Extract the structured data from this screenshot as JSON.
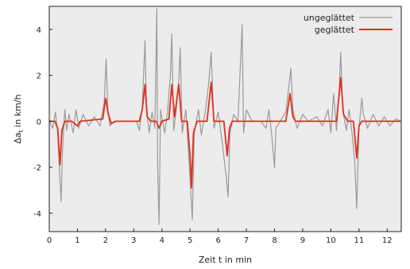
{
  "chart_data": {
    "type": "line",
    "xlabel": "Zeit t in min",
    "ylabel": "Δa",
    "ylabel_subscript": "t",
    "ylabel_unit": " in km/h",
    "xlim": [
      0,
      12.5
    ],
    "ylim": [
      -4.8,
      5
    ],
    "xticks": [
      "0",
      "1",
      "2",
      "3",
      "4",
      "5",
      "6",
      "7",
      "8",
      "9",
      "10",
      "11",
      "12"
    ],
    "yticks": [
      "-4",
      "-2",
      "0",
      "2",
      "4"
    ],
    "grid": false,
    "legend_position": "top-right",
    "series": [
      {
        "name": "ungeglättet",
        "color": "#9a9a9a",
        "points": [
          [
            0.0,
            0.0
          ],
          [
            0.12,
            -0.3
          ],
          [
            0.22,
            0.4
          ],
          [
            0.3,
            -0.5
          ],
          [
            0.38,
            -2.6
          ],
          [
            0.42,
            -3.5
          ],
          [
            0.47,
            -1.2
          ],
          [
            0.55,
            0.5
          ],
          [
            0.62,
            -0.4
          ],
          [
            0.7,
            0.3
          ],
          [
            0.85,
            -0.5
          ],
          [
            0.95,
            0.5
          ],
          [
            1.05,
            -0.3
          ],
          [
            1.2,
            0.3
          ],
          [
            1.4,
            -0.2
          ],
          [
            1.6,
            0.2
          ],
          [
            1.8,
            -0.2
          ],
          [
            1.95,
            0.8
          ],
          [
            2.02,
            2.7
          ],
          [
            2.08,
            0.5
          ],
          [
            2.15,
            -0.2
          ],
          [
            2.3,
            0.0
          ],
          [
            2.8,
            0.0
          ],
          [
            3.1,
            0.0
          ],
          [
            3.2,
            -0.4
          ],
          [
            3.3,
            0.6
          ],
          [
            3.35,
            2.0
          ],
          [
            3.4,
            3.5
          ],
          [
            3.45,
            0.5
          ],
          [
            3.55,
            -0.5
          ],
          [
            3.65,
            0.4
          ],
          [
            3.75,
            -0.3
          ],
          [
            3.82,
            4.9
          ],
          [
            3.85,
            -2.0
          ],
          [
            3.9,
            -4.5
          ],
          [
            3.95,
            0.5
          ],
          [
            4.1,
            -0.5
          ],
          [
            4.2,
            0.4
          ],
          [
            4.3,
            2.0
          ],
          [
            4.35,
            3.8
          ],
          [
            4.42,
            -0.4
          ],
          [
            4.5,
            0.4
          ],
          [
            4.6,
            1.8
          ],
          [
            4.65,
            3.2
          ],
          [
            4.72,
            -0.5
          ],
          [
            4.85,
            0.5
          ],
          [
            5.0,
            -2.5
          ],
          [
            5.08,
            -4.3
          ],
          [
            5.15,
            -0.5
          ],
          [
            5.3,
            0.5
          ],
          [
            5.4,
            -0.6
          ],
          [
            5.55,
            0.5
          ],
          [
            5.65,
            1.5
          ],
          [
            5.75,
            3.0
          ],
          [
            5.85,
            -0.3
          ],
          [
            6.0,
            0.4
          ],
          [
            6.15,
            -1.0
          ],
          [
            6.3,
            -2.6
          ],
          [
            6.35,
            -3.3
          ],
          [
            6.42,
            -0.5
          ],
          [
            6.55,
            0.3
          ],
          [
            6.7,
            0.0
          ],
          [
            6.85,
            4.2
          ],
          [
            6.9,
            -0.5
          ],
          [
            7.0,
            0.5
          ],
          [
            7.2,
            0.0
          ],
          [
            7.5,
            0.0
          ],
          [
            7.7,
            -0.3
          ],
          [
            7.8,
            0.5
          ],
          [
            7.9,
            -0.6
          ],
          [
            8.0,
            -2.0
          ],
          [
            8.05,
            -0.3
          ],
          [
            8.2,
            0.0
          ],
          [
            8.4,
            0.4
          ],
          [
            8.5,
            1.4
          ],
          [
            8.58,
            2.3
          ],
          [
            8.65,
            0.5
          ],
          [
            8.8,
            -0.3
          ],
          [
            9.0,
            0.3
          ],
          [
            9.2,
            0.0
          ],
          [
            9.5,
            0.2
          ],
          [
            9.7,
            -0.2
          ],
          [
            9.9,
            0.5
          ],
          [
            10.0,
            -0.5
          ],
          [
            10.1,
            1.2
          ],
          [
            10.2,
            -0.4
          ],
          [
            10.3,
            1.5
          ],
          [
            10.35,
            3.0
          ],
          [
            10.42,
            0.5
          ],
          [
            10.55,
            -0.4
          ],
          [
            10.65,
            0.5
          ],
          [
            10.75,
            -0.5
          ],
          [
            10.85,
            -1.8
          ],
          [
            10.92,
            -3.8
          ],
          [
            11.0,
            -0.3
          ],
          [
            11.1,
            1.0
          ],
          [
            11.15,
            0.3
          ],
          [
            11.3,
            -0.3
          ],
          [
            11.5,
            0.3
          ],
          [
            11.7,
            -0.2
          ],
          [
            11.9,
            0.2
          ],
          [
            12.1,
            -0.2
          ],
          [
            12.3,
            0.1
          ],
          [
            12.5,
            0.0
          ]
        ]
      },
      {
        "name": "geglättet",
        "color": "#e0301e",
        "points": [
          [
            0.0,
            0.0
          ],
          [
            0.2,
            0.0
          ],
          [
            0.3,
            -0.3
          ],
          [
            0.38,
            -1.9
          ],
          [
            0.45,
            -0.4
          ],
          [
            0.55,
            0.0
          ],
          [
            0.8,
            0.0
          ],
          [
            1.0,
            -0.2
          ],
          [
            1.1,
            0.0
          ],
          [
            1.9,
            0.1
          ],
          [
            2.0,
            1.0
          ],
          [
            2.1,
            0.3
          ],
          [
            2.2,
            -0.1
          ],
          [
            2.35,
            0.0
          ],
          [
            3.2,
            0.0
          ],
          [
            3.3,
            0.5
          ],
          [
            3.4,
            1.6
          ],
          [
            3.48,
            0.2
          ],
          [
            3.6,
            0.0
          ],
          [
            3.8,
            0.0
          ],
          [
            3.9,
            -0.3
          ],
          [
            4.0,
            0.0
          ],
          [
            4.25,
            0.1
          ],
          [
            4.35,
            1.6
          ],
          [
            4.45,
            0.2
          ],
          [
            4.6,
            1.6
          ],
          [
            4.7,
            0.0
          ],
          [
            4.9,
            0.0
          ],
          [
            5.0,
            -1.5
          ],
          [
            5.05,
            -2.9
          ],
          [
            5.12,
            -0.5
          ],
          [
            5.25,
            0.0
          ],
          [
            5.6,
            0.0
          ],
          [
            5.75,
            1.7
          ],
          [
            5.85,
            0.0
          ],
          [
            6.2,
            0.0
          ],
          [
            6.32,
            -1.5
          ],
          [
            6.4,
            -0.3
          ],
          [
            6.5,
            0.0
          ],
          [
            8.4,
            0.0
          ],
          [
            8.55,
            1.2
          ],
          [
            8.65,
            0.2
          ],
          [
            8.75,
            0.0
          ],
          [
            10.2,
            0.0
          ],
          [
            10.35,
            1.9
          ],
          [
            10.45,
            0.3
          ],
          [
            10.6,
            0.0
          ],
          [
            10.8,
            0.0
          ],
          [
            10.92,
            -1.6
          ],
          [
            11.0,
            -0.2
          ],
          [
            11.1,
            0.0
          ],
          [
            12.5,
            0.0
          ]
        ]
      }
    ]
  }
}
